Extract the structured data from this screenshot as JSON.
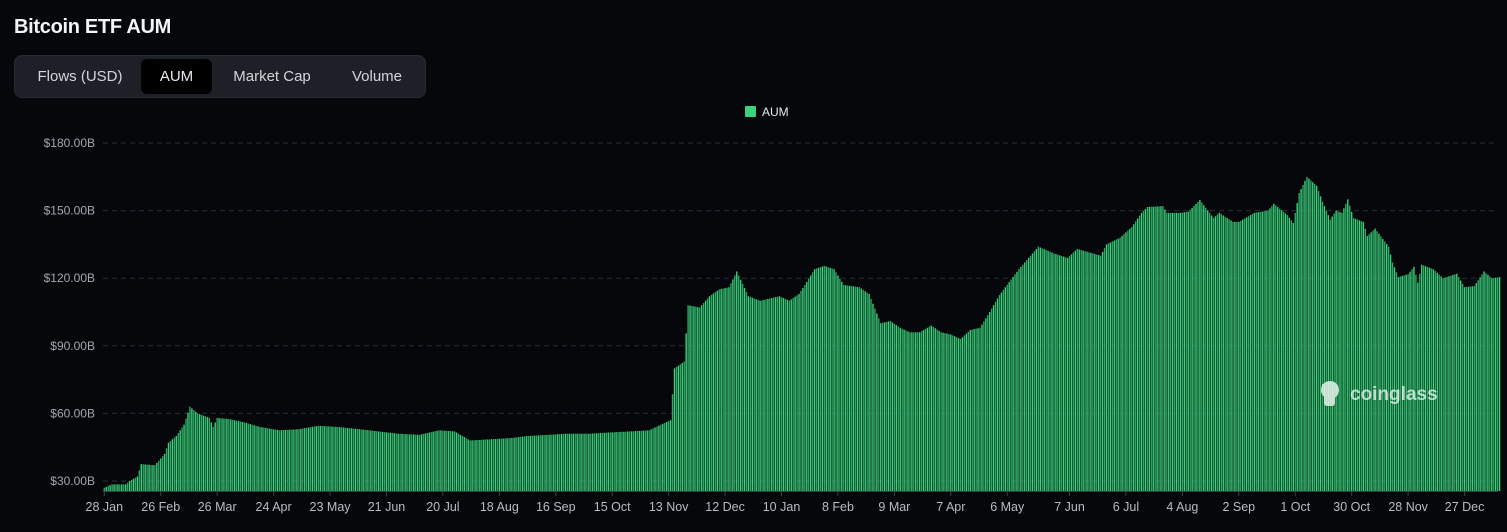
{
  "page": {
    "title": "Bitcoin ETF AUM"
  },
  "tabs": [
    {
      "label": "Flows (USD)",
      "active": false
    },
    {
      "label": "AUM",
      "active": true
    },
    {
      "label": "Market Cap",
      "active": false
    },
    {
      "label": "Volume",
      "active": false
    }
  ],
  "watermark": "coinglass",
  "colors": {
    "bar": "#2ea862",
    "bar_alt": "#3ad27b",
    "background": "#05070b",
    "grid": "#2a2e35"
  },
  "chart_data": {
    "type": "bar",
    "title": "",
    "legend": {
      "position": "top-center",
      "entries": [
        "AUM"
      ]
    },
    "series": [
      {
        "name": "AUM",
        "unit": "USD billions"
      }
    ],
    "ylim": [
      25,
      180
    ],
    "yticks": [
      30,
      60,
      90,
      120,
      150,
      180
    ],
    "ytick_labels": [
      "$30.00B",
      "$60.00B",
      "$90.00B",
      "$120.00B",
      "$150.00B",
      "$180.00B"
    ],
    "xtick_dates": [
      "2024-01-28",
      "2024-02-26",
      "2024-03-26",
      "2024-04-24",
      "2024-05-23",
      "2024-06-21",
      "2024-07-20",
      "2024-08-18",
      "2024-09-16",
      "2024-10-15",
      "2024-11-13",
      "2024-12-12",
      "2025-01-10",
      "2025-02-08",
      "2025-03-09",
      "2025-04-07",
      "2025-05-06",
      "2025-06-07",
      "2025-07-06",
      "2025-08-04",
      "2025-09-02",
      "2025-10-01",
      "2025-10-30",
      "2025-11-28",
      "2025-12-27"
    ],
    "xtick_labels": [
      "28 Jan",
      "26 Feb",
      "26 Mar",
      "24 Apr",
      "23 May",
      "21 Jun",
      "20 Jul",
      "18 Aug",
      "16 Sep",
      "15 Oct",
      "13 Nov",
      "12 Dec",
      "10 Jan",
      "8 Feb",
      "9 Mar",
      "7 Apr",
      "6 May",
      "7 Jun",
      "6 Jul",
      "4 Aug",
      "2 Sep",
      "1 Oct",
      "30 Oct",
      "28 Nov",
      "27 Dec"
    ],
    "grid": true,
    "points": [
      [
        "2024-01-28",
        27
      ],
      [
        "2024-02-01",
        28.5
      ],
      [
        "2024-02-08",
        28.5
      ],
      [
        "2024-02-10",
        30
      ],
      [
        "2024-02-14",
        32
      ],
      [
        "2024-02-16",
        37.5
      ],
      [
        "2024-02-23",
        37
      ],
      [
        "2024-02-28",
        42
      ],
      [
        "2024-03-01",
        47
      ],
      [
        "2024-03-05",
        50
      ],
      [
        "2024-03-09",
        55
      ],
      [
        "2024-03-12",
        63
      ],
      [
        "2024-03-16",
        60
      ],
      [
        "2024-03-22",
        58
      ],
      [
        "2024-03-24",
        54
      ],
      [
        "2024-03-26",
        58
      ],
      [
        "2024-04-01",
        57.5
      ],
      [
        "2024-04-09",
        56
      ],
      [
        "2024-04-17",
        54
      ],
      [
        "2024-04-27",
        52.5
      ],
      [
        "2024-05-07",
        53
      ],
      [
        "2024-05-17",
        54.5
      ],
      [
        "2024-05-27",
        54
      ],
      [
        "2024-06-07",
        53
      ],
      [
        "2024-06-17",
        52
      ],
      [
        "2024-06-27",
        51
      ],
      [
        "2024-07-08",
        50.5
      ],
      [
        "2024-07-18",
        52.5
      ],
      [
        "2024-07-26",
        52
      ],
      [
        "2024-08-03",
        48
      ],
      [
        "2024-08-13",
        48.5
      ],
      [
        "2024-08-23",
        49
      ],
      [
        "2024-09-02",
        50
      ],
      [
        "2024-09-12",
        50.5
      ],
      [
        "2024-09-22",
        51
      ],
      [
        "2024-10-03",
        51
      ],
      [
        "2024-10-13",
        51.5
      ],
      [
        "2024-10-24",
        52
      ],
      [
        "2024-11-03",
        52.5
      ],
      [
        "2024-11-09",
        55
      ],
      [
        "2024-11-14",
        57
      ],
      [
        "2024-11-16",
        80
      ],
      [
        "2024-11-21",
        83
      ],
      [
        "2024-11-23",
        108
      ],
      [
        "2024-11-29",
        107
      ],
      [
        "2024-12-04",
        112
      ],
      [
        "2024-12-09",
        115
      ],
      [
        "2024-12-14",
        116
      ],
      [
        "2024-12-18",
        123
      ],
      [
        "2024-12-24",
        112
      ],
      [
        "2024-12-30",
        110
      ],
      [
        "2025-01-04",
        111
      ],
      [
        "2025-01-09",
        112
      ],
      [
        "2025-01-14",
        110
      ],
      [
        "2025-01-19",
        113
      ],
      [
        "2025-01-22",
        117
      ],
      [
        "2025-01-27",
        124
      ],
      [
        "2025-02-01",
        125.5
      ],
      [
        "2025-02-06",
        124
      ],
      [
        "2025-02-11",
        117
      ],
      [
        "2025-02-19",
        116
      ],
      [
        "2025-02-24",
        113
      ],
      [
        "2025-03-02",
        100
      ],
      [
        "2025-03-07",
        101
      ],
      [
        "2025-03-12",
        98
      ],
      [
        "2025-03-17",
        96
      ],
      [
        "2025-03-22",
        96
      ],
      [
        "2025-03-28",
        99
      ],
      [
        "2025-04-02",
        96
      ],
      [
        "2025-04-07",
        95
      ],
      [
        "2025-04-12",
        93
      ],
      [
        "2025-04-17",
        97
      ],
      [
        "2025-04-22",
        98
      ],
      [
        "2025-04-27",
        105
      ],
      [
        "2025-05-02",
        112.5
      ],
      [
        "2025-05-12",
        124
      ],
      [
        "2025-05-22",
        134
      ],
      [
        "2025-05-30",
        131
      ],
      [
        "2025-06-06",
        129
      ],
      [
        "2025-06-11",
        133
      ],
      [
        "2025-06-23",
        130
      ],
      [
        "2025-06-26",
        135
      ],
      [
        "2025-07-03",
        138
      ],
      [
        "2025-07-09",
        142.7
      ],
      [
        "2025-07-14",
        149
      ],
      [
        "2025-07-17",
        151.6
      ],
      [
        "2025-07-25",
        152
      ],
      [
        "2025-07-27",
        149
      ],
      [
        "2025-08-03",
        149
      ],
      [
        "2025-08-07",
        149.5
      ],
      [
        "2025-08-13",
        154.7
      ],
      [
        "2025-08-20",
        146.7
      ],
      [
        "2025-08-23",
        149
      ],
      [
        "2025-08-30",
        145
      ],
      [
        "2025-09-02",
        145
      ],
      [
        "2025-09-10",
        149
      ],
      [
        "2025-09-17",
        150
      ],
      [
        "2025-09-20",
        153
      ],
      [
        "2025-09-27",
        148
      ],
      [
        "2025-09-30",
        144.5
      ],
      [
        "2025-10-03",
        157.8
      ],
      [
        "2025-10-07",
        165
      ],
      [
        "2025-10-12",
        161
      ],
      [
        "2025-10-15",
        154
      ],
      [
        "2025-10-19",
        146
      ],
      [
        "2025-10-22",
        150
      ],
      [
        "2025-10-25",
        149
      ],
      [
        "2025-10-28",
        155
      ],
      [
        "2025-10-31",
        146.7
      ],
      [
        "2025-11-05",
        145
      ],
      [
        "2025-11-07",
        138.7
      ],
      [
        "2025-11-11",
        142
      ],
      [
        "2025-11-15",
        137.4
      ],
      [
        "2025-11-18",
        134
      ],
      [
        "2025-11-20",
        127
      ],
      [
        "2025-11-23",
        120.5
      ],
      [
        "2025-11-28",
        121.8
      ],
      [
        "2025-12-01",
        125
      ],
      [
        "2025-12-03",
        118
      ],
      [
        "2025-12-05",
        126
      ],
      [
        "2025-12-11",
        124
      ],
      [
        "2025-12-16",
        120
      ],
      [
        "2025-12-23",
        122
      ],
      [
        "2025-12-27",
        116
      ],
      [
        "2026-01-01",
        116.5
      ],
      [
        "2026-01-06",
        123
      ],
      [
        "2026-01-10",
        120
      ],
      [
        "2026-01-14",
        120.5
      ]
    ]
  }
}
